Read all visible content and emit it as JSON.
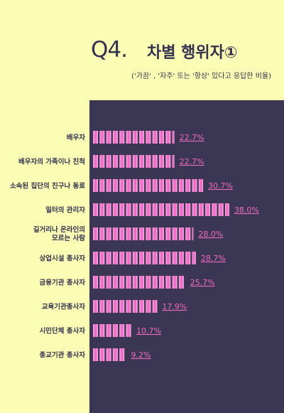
{
  "header": {
    "q": "Q4.",
    "title": "차별 행위자①",
    "subtitle": "('가끔' , '자주' 또는 '항상' 있다고 응답한 비율)"
  },
  "colors": {
    "background": "#fbfdb4",
    "panel": "#3b3654",
    "bar": "#f27ed3",
    "bar_light": "#fcd3f0",
    "text": "#34324f",
    "value": "#f06ac0"
  },
  "chart_data": {
    "type": "bar",
    "orientation": "horizontal",
    "title": "차별 행위자①",
    "subtitle": "('가끔' , '자주' 또는 '항상' 있다고 응답한 비율)",
    "categories": [
      [
        "배우자"
      ],
      [
        "배우자의 가족이나 친척"
      ],
      [
        "소속된 집단의 친구나 동료"
      ],
      [
        "일터의 관리자"
      ],
      [
        "길거리나 온라인의",
        "모르는 사람"
      ],
      [
        "상업시설 종사자"
      ],
      [
        "금융기관 종사자"
      ],
      [
        "교육기관종사자"
      ],
      [
        "시민단체 종사자"
      ],
      [
        "종교기관 종사자"
      ]
    ],
    "values": [
      22.7,
      22.7,
      30.7,
      38.0,
      28.0,
      28.7,
      25.7,
      17.9,
      10.7,
      9.2
    ],
    "value_labels": [
      "22.7%",
      "22.7%",
      "30.7%",
      "38.0%",
      "28.0%",
      "28.7%",
      "25.7%",
      "17.9%",
      "10.7%",
      "9.2%"
    ],
    "unit": "%",
    "xlim": [
      0,
      40
    ]
  }
}
